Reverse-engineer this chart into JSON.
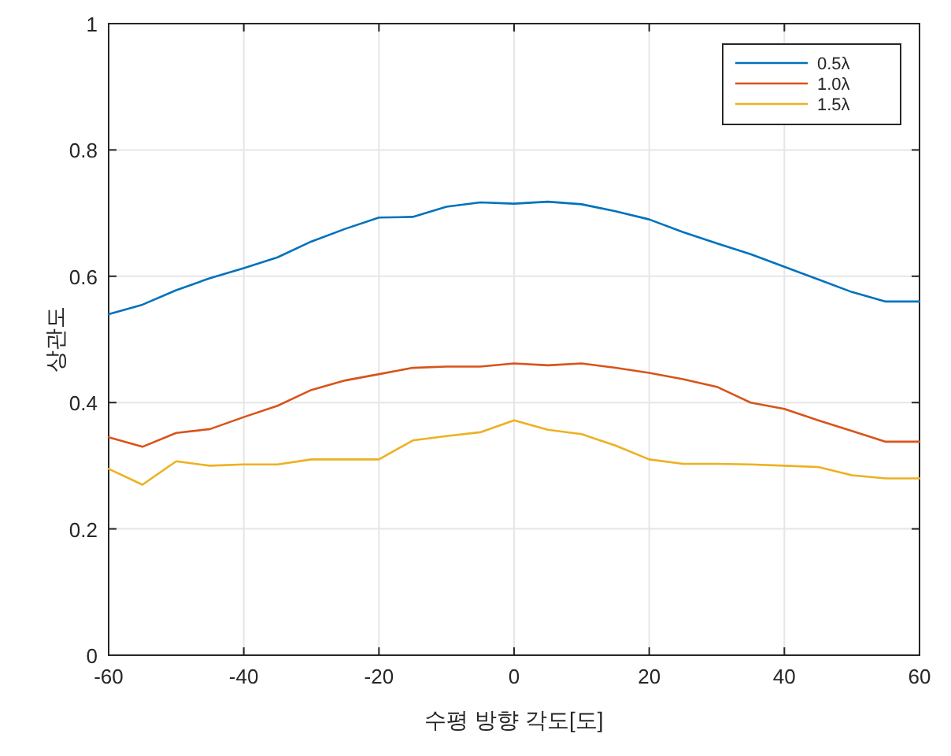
{
  "chart_data": {
    "type": "line",
    "xlabel": "수평 방향 각도[도]",
    "ylabel": "상관도",
    "x": [
      -60,
      -55,
      -50,
      -45,
      -40,
      -35,
      -30,
      -25,
      -20,
      -15,
      -10,
      -5,
      0,
      5,
      10,
      15,
      20,
      25,
      30,
      35,
      40,
      45,
      50,
      55,
      60
    ],
    "series": [
      {
        "name": "0.5λ",
        "color": "#0072bd",
        "values": [
          0.54,
          0.555,
          0.578,
          0.597,
          0.613,
          0.63,
          0.655,
          0.675,
          0.693,
          0.694,
          0.71,
          0.717,
          0.715,
          0.718,
          0.714,
          0.703,
          0.69,
          0.67,
          0.652,
          0.635,
          0.615,
          0.595,
          0.575,
          0.56,
          0.56
        ]
      },
      {
        "name": "1.0λ",
        "color": "#d95319",
        "values": [
          0.345,
          0.33,
          0.352,
          0.358,
          0.377,
          0.395,
          0.42,
          0.435,
          0.445,
          0.455,
          0.457,
          0.457,
          0.462,
          0.459,
          0.462,
          0.455,
          0.447,
          0.437,
          0.425,
          0.4,
          0.39,
          0.372,
          0.355,
          0.338,
          0.338
        ]
      },
      {
        "name": "1.5λ",
        "color": "#edb120",
        "values": [
          0.295,
          0.27,
          0.307,
          0.3,
          0.302,
          0.302,
          0.31,
          0.31,
          0.31,
          0.34,
          0.347,
          0.353,
          0.372,
          0.357,
          0.35,
          0.332,
          0.31,
          0.303,
          0.303,
          0.302,
          0.3,
          0.298,
          0.285,
          0.28,
          0.28
        ]
      }
    ],
    "xlim": [
      -60,
      60
    ],
    "ylim": [
      0,
      1
    ],
    "xticks": [
      -60,
      -40,
      -20,
      0,
      20,
      40,
      60
    ],
    "yticks": [
      0,
      0.2,
      0.4,
      0.6,
      0.8,
      1
    ],
    "grid": true,
    "legend": "top right"
  }
}
